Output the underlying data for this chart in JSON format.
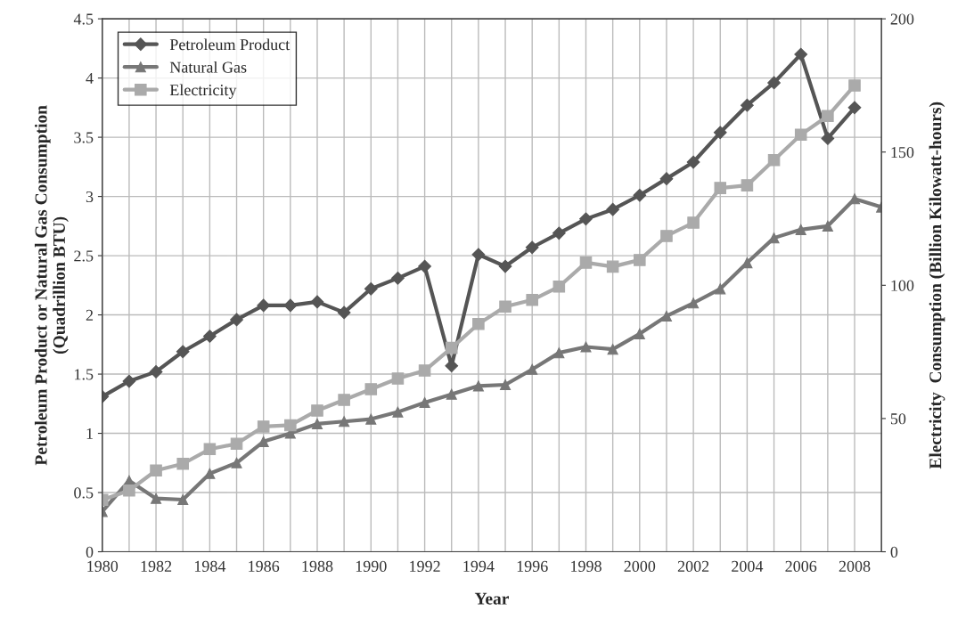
{
  "chart_data": {
    "type": "line",
    "xlabel": "Year",
    "ylabel": "Petroleum Product or Natural Gas Consumption\n(Quadrillion BTU)",
    "y2label": "Electricity  Consumption (Billion Kilowatt-hours)",
    "x": [
      1980,
      1981,
      1982,
      1983,
      1984,
      1985,
      1986,
      1987,
      1988,
      1989,
      1990,
      1991,
      1992,
      1993,
      1994,
      1995,
      1996,
      1997,
      1998,
      1999,
      2000,
      2001,
      2002,
      2003,
      2004,
      2005,
      2006,
      2007,
      2008
    ],
    "series": [
      {
        "name": "Petroleum Product",
        "color": "#555555",
        "marker": "diamond",
        "values": [
          1.31,
          1.44,
          1.52,
          1.69,
          1.82,
          1.96,
          2.08,
          2.08,
          2.11,
          2.02,
          2.22,
          2.31,
          2.41,
          1.57,
          2.51,
          2.41,
          2.57,
          2.69,
          2.81,
          2.89,
          3.01,
          3.15,
          3.29,
          3.54,
          3.77,
          3.96,
          4.2,
          3.49,
          3.75
        ]
      },
      {
        "name": "Natural Gas",
        "color": "#777777",
        "marker": "triangle",
        "x": [
          1980,
          1981,
          1982,
          1983,
          1984,
          1985,
          1986,
          1987,
          1988,
          1989,
          1990,
          1991,
          1992,
          1993,
          1994,
          1995,
          1996,
          1997,
          1998,
          1999,
          2000,
          2001,
          2002,
          2003,
          2004,
          2005,
          2006,
          2007,
          2008,
          2009
        ],
        "values": [
          0.34,
          0.6,
          0.45,
          0.44,
          0.66,
          0.75,
          0.93,
          1.0,
          1.08,
          1.1,
          1.12,
          1.18,
          1.26,
          1.33,
          1.4,
          1.41,
          1.54,
          1.68,
          1.73,
          1.71,
          1.84,
          1.99,
          2.1,
          2.22,
          2.44,
          2.65,
          2.72,
          2.75,
          2.98,
          2.91
        ]
      },
      {
        "name": "Electricity",
        "color": "#aaaaaa",
        "marker": "square",
        "axis": "y2",
        "values": [
          19.5,
          23,
          30.5,
          33,
          38.5,
          40.5,
          47,
          47.5,
          53,
          57,
          61,
          65,
          68,
          76.5,
          85.5,
          92,
          94.5,
          99.5,
          108.5,
          107,
          109.5,
          118.5,
          123.5,
          136.5,
          137.5,
          147,
          156.5,
          163.5,
          175
        ]
      }
    ],
    "xlim": [
      1980,
      2009
    ],
    "xticks": [
      1980,
      {
        "value": 1981,
        "label": null
      },
      1982,
      {
        "value": 1983,
        "label": null
      },
      1984,
      {
        "value": 1985,
        "label": null
      },
      1986,
      {
        "value": 1987,
        "label": null
      },
      1988,
      {
        "value": 1989,
        "label": null
      },
      1990,
      {
        "value": 1991,
        "label": null
      },
      1992,
      {
        "value": 1993,
        "label": null
      },
      1994,
      {
        "value": 1995,
        "label": null
      },
      1996,
      {
        "value": 1997,
        "label": null
      },
      1998,
      {
        "value": 1999,
        "label": null
      },
      2000,
      {
        "value": 2001,
        "label": null
      },
      2002,
      {
        "value": 2003,
        "label": null
      },
      2004,
      {
        "value": 2005,
        "label": null
      },
      2006,
      {
        "value": 2007,
        "label": null
      },
      2008
    ],
    "ylim": [
      0,
      4.5
    ],
    "yticks": [
      0,
      0.5,
      1,
      1.5,
      2,
      2.5,
      3,
      3.5,
      4,
      4.5
    ],
    "y2lim": [
      0,
      200
    ],
    "y2ticks": [
      0,
      50,
      100,
      150,
      200
    ],
    "grid": true,
    "legend": "top left",
    "line_style": "solid"
  }
}
